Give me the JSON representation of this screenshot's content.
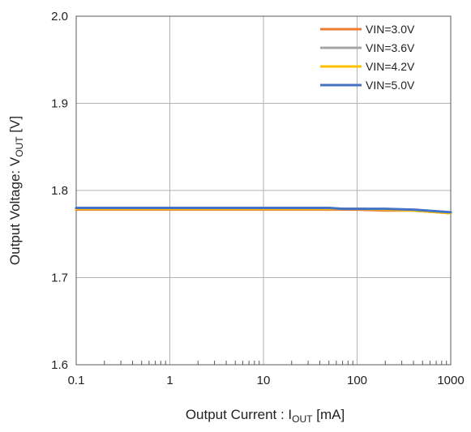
{
  "chart_data": {
    "type": "line",
    "title": "",
    "xlabel": {
      "main": "Output  Current : I",
      "sub": "OUT",
      "unit": " [mA]"
    },
    "ylabel": {
      "main": "Output Voltage: V",
      "sub": "OUT",
      "unit": " [V]"
    },
    "xscale": "log",
    "xlim": [
      0.1,
      1000
    ],
    "ylim": [
      1.6,
      2.0
    ],
    "x_ticks": [
      {
        "value": 0.1,
        "label": "0.1"
      },
      {
        "value": 1,
        "label": "1"
      },
      {
        "value": 10,
        "label": "10"
      },
      {
        "value": 100,
        "label": "100"
      },
      {
        "value": 1000,
        "label": "1000"
      }
    ],
    "y_ticks": [
      {
        "value": 1.6,
        "label": "1.6"
      },
      {
        "value": 1.7,
        "label": "1.7"
      },
      {
        "value": 1.8,
        "label": "1.8"
      },
      {
        "value": 1.9,
        "label": "1.9"
      },
      {
        "value": 2.0,
        "label": "2.0"
      }
    ],
    "grid": true,
    "legend_position": "top-right",
    "series": [
      {
        "name": "VIN=3.0V",
        "color": "#ED7D31",
        "x": [
          0.1,
          1,
          10,
          50,
          100,
          200,
          400,
          1000
        ],
        "y": [
          1.778,
          1.778,
          1.778,
          1.778,
          1.778,
          1.777,
          1.777,
          1.774
        ]
      },
      {
        "name": "VIN=3.6V",
        "color": "#A5A5A5",
        "x": [
          0.1,
          1,
          10,
          50,
          100,
          200,
          400,
          1000
        ],
        "y": [
          1.779,
          1.779,
          1.779,
          1.779,
          1.779,
          1.778,
          1.777,
          1.774
        ]
      },
      {
        "name": "VIN=4.2V",
        "color": "#FFC000",
        "x": [
          0.1,
          1,
          10,
          50,
          100,
          200,
          400,
          1000
        ],
        "y": [
          1.779,
          1.779,
          1.779,
          1.779,
          1.779,
          1.778,
          1.777,
          1.774
        ]
      },
      {
        "name": "VIN=5.0V",
        "color": "#4472C4",
        "x": [
          0.1,
          1,
          10,
          50,
          70,
          200,
          400,
          1000
        ],
        "y": [
          1.78,
          1.78,
          1.78,
          1.78,
          1.779,
          1.779,
          1.778,
          1.775
        ]
      }
    ]
  }
}
